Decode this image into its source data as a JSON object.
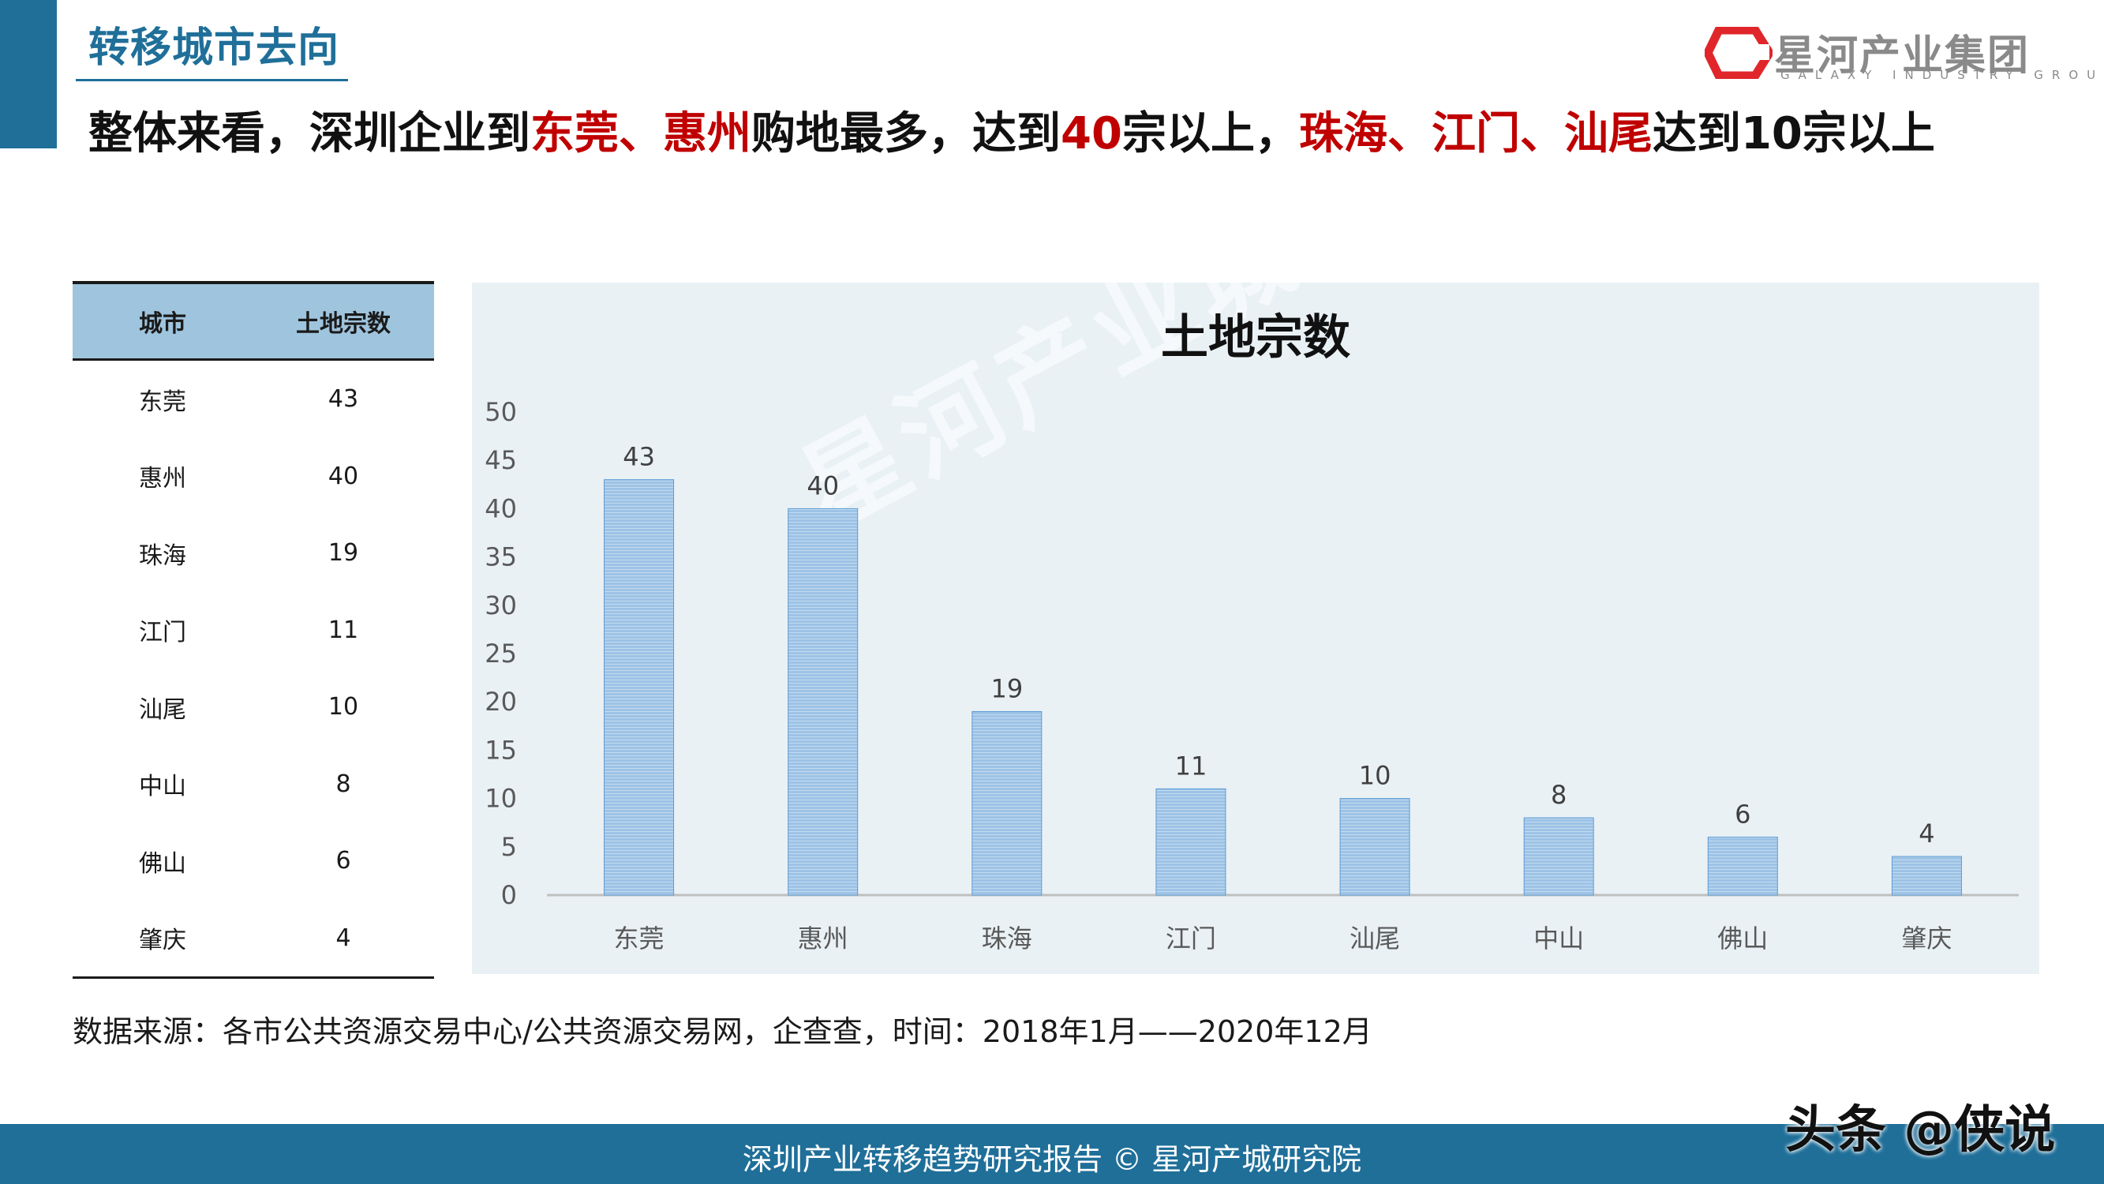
{
  "section_title": "转移城市去向",
  "logo": {
    "name": "星河产业集团",
    "en": "GALAXY INDUSTRY GROUP"
  },
  "headline": {
    "p1": "整体来看，深圳企业到",
    "r1": "东莞、惠州",
    "p2": "购地最多，达到",
    "r2": "40",
    "p3": "宗以上，",
    "r3": "珠海、江门、汕尾",
    "p4": "达到10宗以上"
  },
  "table": {
    "headers": [
      "城市",
      "土地宗数"
    ],
    "rows": [
      [
        "东莞",
        "43"
      ],
      [
        "惠州",
        "40"
      ],
      [
        "珠海",
        "19"
      ],
      [
        "江门",
        "11"
      ],
      [
        "汕尾",
        "10"
      ],
      [
        "中山",
        "8"
      ],
      [
        "佛山",
        "6"
      ],
      [
        "肇庆",
        "4"
      ]
    ]
  },
  "chart_data": {
    "type": "bar",
    "title": "土地宗数",
    "categories": [
      "东莞",
      "惠州",
      "珠海",
      "江门",
      "汕尾",
      "中山",
      "佛山",
      "肇庆"
    ],
    "values": [
      43,
      40,
      19,
      11,
      10,
      8,
      6,
      4
    ],
    "ylim": [
      0,
      50
    ],
    "yticks": [
      0,
      5,
      10,
      15,
      20,
      25,
      30,
      35,
      40,
      45,
      50
    ],
    "grid": false,
    "legend": "none",
    "bar_color": "#9dc3e6"
  },
  "watermark": "星河产业城研究院",
  "source": "数据来源：各市公共资源交易中心/公共资源交易网，企查查，时间：2018年1月——2020年12月",
  "footer": "深圳产业转移趋势研究报告 © 星河产城研究院",
  "credit": "头条 @侠说",
  "colors": {
    "primary": "#1f6f99",
    "accent_red": "#c00000",
    "table_header": "#9fc4dd",
    "chart_bg": "#e9f1f5"
  }
}
